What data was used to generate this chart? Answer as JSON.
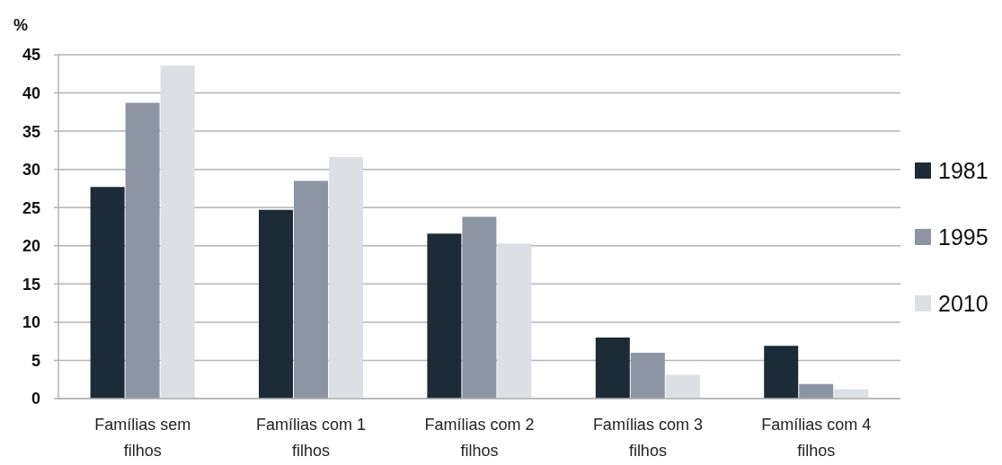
{
  "chart_data": {
    "type": "bar",
    "ylabel": "%",
    "categories": [
      "Famílias sem filhos",
      "Famílias com 1 filhos",
      "Famílias com 2 filhos",
      "Famílias com 3 filhos",
      "Famílias com 4 filhos"
    ],
    "series": [
      {
        "name": "1981",
        "color": "#1c2b36",
        "values": [
          27.7,
          24.7,
          21.6,
          8.0,
          6.9
        ]
      },
      {
        "name": "1995",
        "color": "#8e95a2",
        "values": [
          38.7,
          28.5,
          23.8,
          6.0,
          1.9
        ]
      },
      {
        "name": "2010",
        "color": "#dcdfe4",
        "values": [
          43.6,
          31.6,
          20.3,
          3.1,
          1.2
        ]
      }
    ],
    "ylim": [
      0,
      45
    ],
    "yticks": [
      0,
      5,
      10,
      15,
      20,
      25,
      30,
      35,
      40,
      45
    ],
    "grid": "y",
    "legend": "right"
  }
}
